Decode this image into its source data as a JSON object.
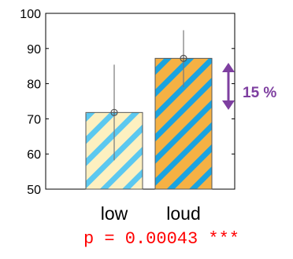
{
  "chart_data": {
    "type": "bar",
    "categories": [
      "low",
      "loud"
    ],
    "values": [
      71.8,
      87.2
    ],
    "error_bars": [
      {
        "lower": 58.2,
        "upper": 85.4
      },
      {
        "lower": 79.0,
        "upper": 95.2
      }
    ],
    "ylim": [
      50,
      100
    ],
    "yticks": [
      50,
      60,
      70,
      80,
      90,
      100
    ],
    "grid": false,
    "bar_styles": [
      {
        "base_color": "#fdf0c0",
        "stripe_color": "#5bc8f0"
      },
      {
        "base_color": "#f5b144",
        "stripe_color": "#1aa3e0"
      }
    ],
    "annotation": {
      "text": "15 %",
      "color": "#7e3fa0"
    },
    "stats_text": "p = 0.00043 ***",
    "stats_color": "#ff0000"
  }
}
